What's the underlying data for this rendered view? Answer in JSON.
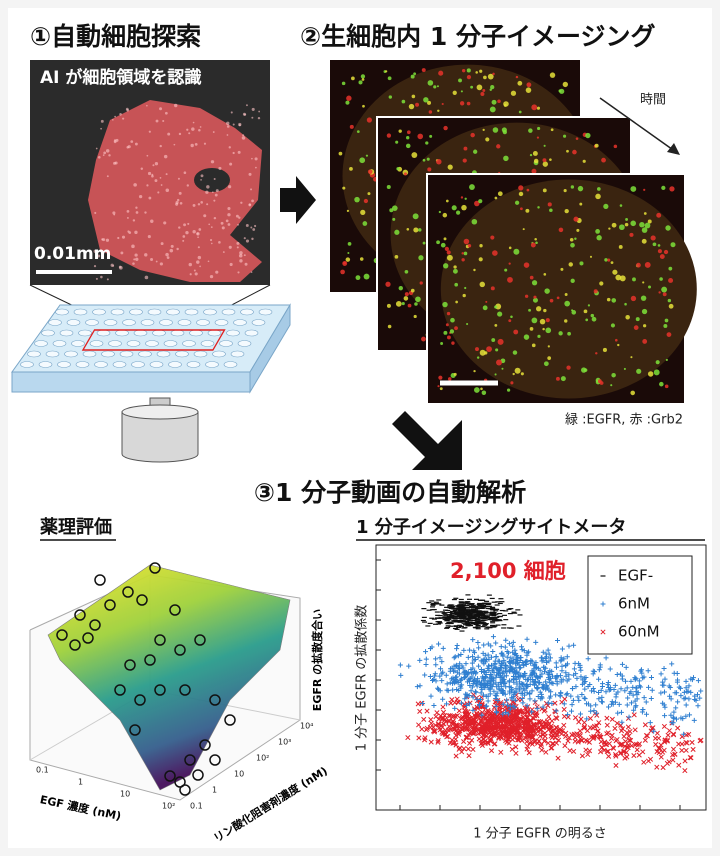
{
  "panels": {
    "search": {
      "title": "①自動細胞探索",
      "caption": "AI が細胞領域を認識",
      "scale_bar": "0.01mm"
    },
    "imaging": {
      "title": "②生細胞内 1 分子イメージング",
      "time_label": "時間",
      "legend": "緑 :EGFR, 赤 :Grb2"
    },
    "analysis": {
      "title": "③1 分子動画の自動解析",
      "pharmacology": {
        "title": "薬理評価",
        "x_label": "EGF 濃度 (nM)",
        "y_label": "リン酸化阻害剤濃度 (nM)",
        "z_label": "EGFR の拡散度合い",
        "x_ticks": [
          "0.1",
          "1",
          "10",
          "10²"
        ],
        "y_ticks": [
          "0.1",
          "1",
          "10",
          "10²",
          "10³",
          "10⁴"
        ]
      },
      "cytometer": {
        "title": "1 分子イメージングサイトメータ",
        "count": "2,100 細胞",
        "x_label": "1 分子 EGFR の明るさ",
        "y_label": "1 分子 EGFR の拡散係数",
        "legend": [
          {
            "name": "EGF-",
            "color": "#111111"
          },
          {
            "name": "6nM",
            "color": "#2f7fd0"
          },
          {
            "name": "60nM",
            "color": "#e0202a"
          }
        ]
      }
    }
  }
}
